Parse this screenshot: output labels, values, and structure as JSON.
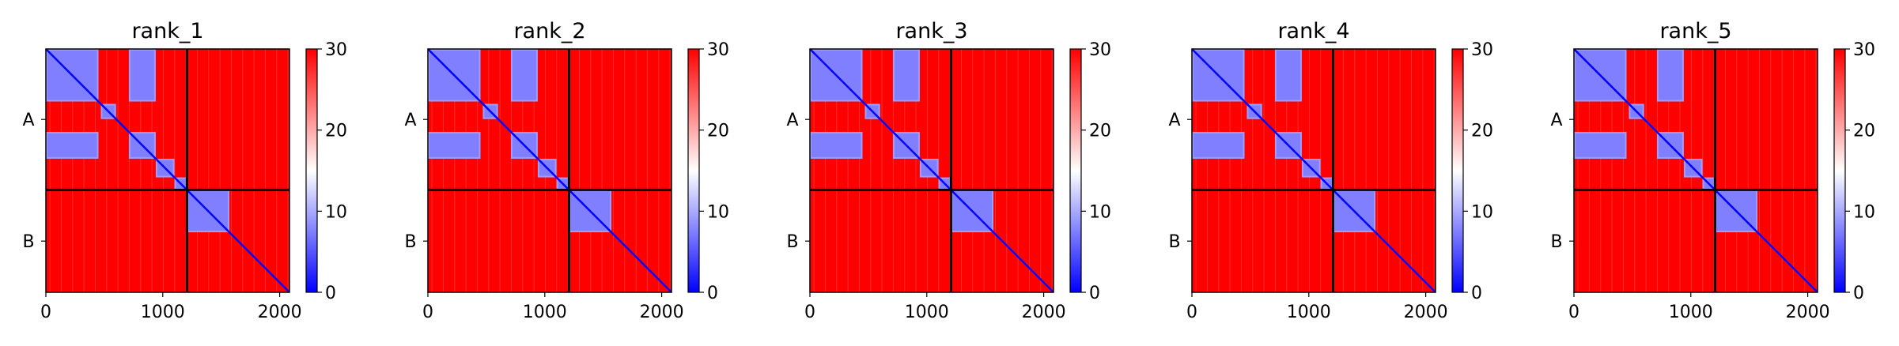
{
  "chart_data": {
    "type": "heatmap",
    "description_free": true,
    "colormap": {
      "name": "bwr",
      "low": "#0000ff",
      "mid": "#ffffff",
      "high": "#ff0000",
      "vmin": 0,
      "vmax": 30
    },
    "colorbar_ticks": [
      "0",
      "10",
      "20",
      "30"
    ],
    "x_ticks": [
      "0",
      "1000",
      "2000"
    ],
    "x_tick_values": [
      0,
      1000,
      2000
    ],
    "x_range": [
      0,
      2084
    ],
    "chain_labels": [
      "A",
      "B"
    ],
    "chain_boundary": 1207,
    "matrix_size": 2084,
    "panels": [
      {
        "title": "rank_1",
        "blocks": [
          {
            "x": [
              0,
              450
            ],
            "y": [
              0,
              450
            ]
          },
          {
            "x": [
              710,
              940
            ],
            "y": [
              0,
              450
            ]
          },
          {
            "x": [
              0,
              450
            ],
            "y": [
              710,
              940
            ]
          },
          {
            "x": [
              710,
              940
            ],
            "y": [
              710,
              940
            ]
          },
          {
            "x": [
              470,
              600
            ],
            "y": [
              470,
              600
            ]
          },
          {
            "x": [
              940,
              1100
            ],
            "y": [
              940,
              1100
            ]
          },
          {
            "x": [
              1100,
              1207
            ],
            "y": [
              1100,
              1207
            ]
          },
          {
            "x": [
              1207,
              1570
            ],
            "y": [
              1207,
              1570
            ]
          }
        ]
      },
      {
        "title": "rank_2",
        "blocks": [
          {
            "x": [
              0,
              450
            ],
            "y": [
              0,
              450
            ]
          },
          {
            "x": [
              710,
              940
            ],
            "y": [
              0,
              450
            ]
          },
          {
            "x": [
              0,
              450
            ],
            "y": [
              710,
              940
            ]
          },
          {
            "x": [
              710,
              940
            ],
            "y": [
              710,
              940
            ]
          },
          {
            "x": [
              470,
              600
            ],
            "y": [
              470,
              600
            ]
          },
          {
            "x": [
              940,
              1100
            ],
            "y": [
              940,
              1100
            ]
          },
          {
            "x": [
              1100,
              1207
            ],
            "y": [
              1100,
              1207
            ]
          },
          {
            "x": [
              1207,
              1570
            ],
            "y": [
              1207,
              1570
            ]
          }
        ]
      },
      {
        "title": "rank_3",
        "blocks": [
          {
            "x": [
              0,
              450
            ],
            "y": [
              0,
              450
            ]
          },
          {
            "x": [
              710,
              940
            ],
            "y": [
              0,
              450
            ]
          },
          {
            "x": [
              0,
              450
            ],
            "y": [
              710,
              940
            ]
          },
          {
            "x": [
              710,
              940
            ],
            "y": [
              710,
              940
            ]
          },
          {
            "x": [
              470,
              600
            ],
            "y": [
              470,
              600
            ]
          },
          {
            "x": [
              940,
              1100
            ],
            "y": [
              940,
              1100
            ]
          },
          {
            "x": [
              1100,
              1207
            ],
            "y": [
              1100,
              1207
            ]
          },
          {
            "x": [
              1207,
              1570
            ],
            "y": [
              1207,
              1570
            ]
          }
        ]
      },
      {
        "title": "rank_4",
        "blocks": [
          {
            "x": [
              0,
              450
            ],
            "y": [
              0,
              450
            ]
          },
          {
            "x": [
              710,
              940
            ],
            "y": [
              0,
              450
            ]
          },
          {
            "x": [
              0,
              450
            ],
            "y": [
              710,
              940
            ]
          },
          {
            "x": [
              710,
              940
            ],
            "y": [
              710,
              940
            ]
          },
          {
            "x": [
              470,
              600
            ],
            "y": [
              470,
              600
            ]
          },
          {
            "x": [
              940,
              1100
            ],
            "y": [
              940,
              1100
            ]
          },
          {
            "x": [
              1100,
              1207
            ],
            "y": [
              1100,
              1207
            ]
          },
          {
            "x": [
              1207,
              1570
            ],
            "y": [
              1207,
              1570
            ]
          }
        ]
      },
      {
        "title": "rank_5",
        "blocks": [
          {
            "x": [
              0,
              450
            ],
            "y": [
              0,
              450
            ]
          },
          {
            "x": [
              710,
              940
            ],
            "y": [
              0,
              450
            ]
          },
          {
            "x": [
              0,
              450
            ],
            "y": [
              710,
              940
            ]
          },
          {
            "x": [
              710,
              940
            ],
            "y": [
              710,
              940
            ]
          },
          {
            "x": [
              470,
              600
            ],
            "y": [
              470,
              600
            ]
          },
          {
            "x": [
              940,
              1100
            ],
            "y": [
              940,
              1100
            ]
          },
          {
            "x": [
              1100,
              1207
            ],
            "y": [
              1100,
              1207
            ]
          },
          {
            "x": [
              1207,
              1570
            ],
            "y": [
              1207,
              1570
            ]
          }
        ]
      }
    ]
  }
}
